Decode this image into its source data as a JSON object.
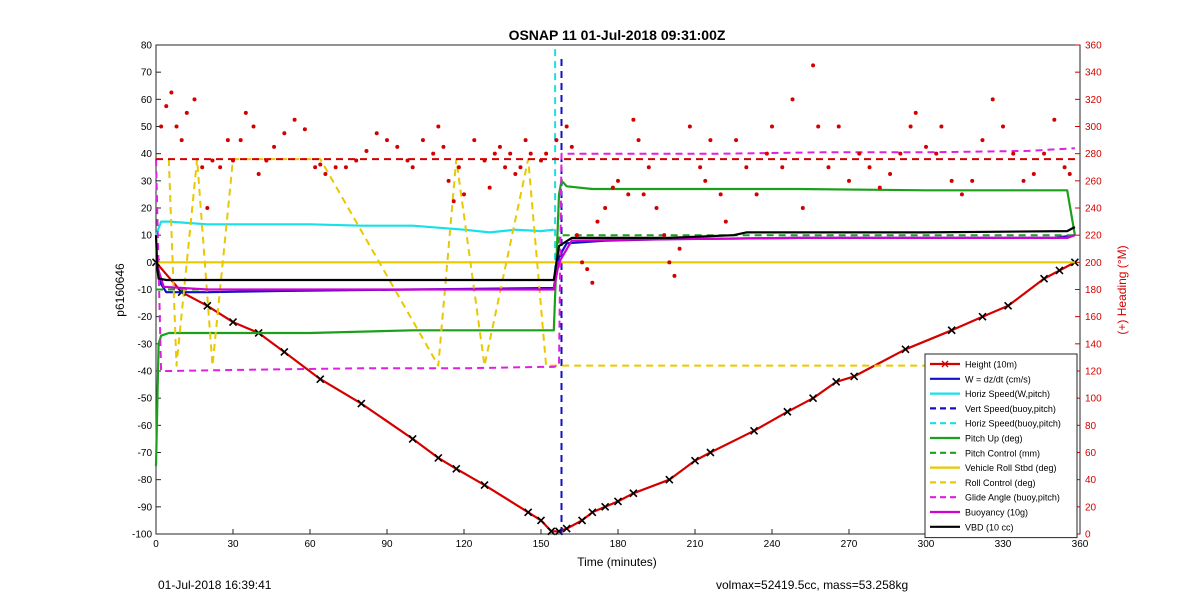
{
  "chart_data": {
    "type": "line",
    "title": "OSNAP 11 01-Jul-2018 09:31:00Z",
    "xlabel": "Time (minutes)",
    "ylabel_left": "p6160646",
    "ylabel_right": "(+) Heading (°M)",
    "xlim": [
      0,
      360
    ],
    "ylim_left": [
      -100,
      80
    ],
    "ylim_right": [
      0,
      360
    ],
    "xticks": [
      0,
      30,
      60,
      90,
      120,
      150,
      180,
      210,
      240,
      270,
      300,
      330,
      360
    ],
    "yticks_left": [
      -100,
      -90,
      -80,
      -70,
      -60,
      -50,
      -40,
      -30,
      -20,
      -10,
      0,
      10,
      20,
      30,
      40,
      50,
      60,
      70,
      80
    ],
    "yticks_right": [
      0,
      20,
      40,
      60,
      80,
      100,
      120,
      140,
      160,
      180,
      200,
      220,
      240,
      260,
      280,
      300,
      320,
      340,
      360
    ],
    "grid": false,
    "legend_position": "bottom-right",
    "series": [
      {
        "name": "Height (10m)",
        "color": "#d40000",
        "style": "solid",
        "marker": "x",
        "x": [
          0,
          10,
          20,
          30,
          40,
          50,
          64,
          80,
          100,
          110,
          117,
          128,
          145,
          150,
          154,
          157,
          160,
          166,
          170,
          175,
          180,
          186,
          200,
          210,
          216,
          233,
          246,
          256,
          265,
          272,
          292,
          310,
          322,
          332,
          346,
          352,
          358
        ],
        "y": [
          0,
          -11,
          -16,
          -22,
          -26,
          -33,
          -43,
          -52,
          -65,
          -72,
          -76,
          -82,
          -92,
          -95,
          -99,
          -99,
          -98,
          -95,
          -92,
          -90,
          -88,
          -85,
          -80,
          -73,
          -70,
          -62,
          -55,
          -50,
          -44,
          -42,
          -32,
          -25,
          -20,
          -16,
          -6,
          -3,
          0
        ]
      },
      {
        "name": "W = dz/dt (cm/s)",
        "color": "#1010c8",
        "style": "solid",
        "x": [
          0,
          2,
          4,
          10,
          20,
          50,
          100,
          150,
          155,
          157,
          160,
          175,
          200,
          250,
          300,
          350,
          358
        ],
        "y": [
          0,
          -8,
          -11,
          -11,
          -11,
          -10.5,
          -10,
          -9.5,
          -9.5,
          2,
          7,
          8,
          8.5,
          9,
          9,
          9,
          10
        ]
      },
      {
        "name": "Horiz Speed(W,pitch)",
        "color": "#18e0e8",
        "style": "solid",
        "x": [
          0,
          2,
          5,
          20,
          40,
          60,
          80,
          100,
          120,
          130,
          140,
          150,
          155
        ],
        "y": [
          10,
          15,
          15,
          14,
          14,
          14,
          13.5,
          13.5,
          12,
          11,
          12,
          11.5,
          12
        ]
      },
      {
        "name": "Vert Speed(buoy,pitch)",
        "color": "#1010c8",
        "style": "dashed",
        "x": [
          158,
          158
        ],
        "y": [
          -100,
          76
        ]
      },
      {
        "name": "Horiz Speed(buoy,pitch)",
        "color": "#18e0e8",
        "style": "dashed",
        "x": [
          155.5,
          155.5
        ],
        "y": [
          -8,
          80
        ]
      },
      {
        "name": "Pitch Up (deg)",
        "color": "#1ca01c",
        "style": "solid",
        "x": [
          0,
          1,
          2,
          5,
          20,
          60,
          100,
          130,
          150,
          155,
          157,
          158,
          160,
          170,
          200,
          250,
          300,
          340,
          355,
          358
        ],
        "y": [
          -75,
          -30,
          -27,
          -26,
          -26,
          -26,
          -25,
          -25,
          -25,
          -25,
          25,
          30,
          28,
          27,
          27,
          27,
          26.5,
          26.5,
          26.5,
          10
        ]
      },
      {
        "name": "Pitch Control (mm)",
        "color": "#1ca01c",
        "style": "dashed",
        "x": [
          0,
          155,
          157,
          180,
          220,
          260,
          300,
          358
        ],
        "y": [
          -10,
          -10,
          10,
          10,
          10,
          10,
          10,
          10
        ]
      },
      {
        "name": "Vehicle Roll Stbd (deg)",
        "color": "#e8c800",
        "style": "solid",
        "x": [
          0,
          20,
          60,
          100,
          155,
          157,
          180,
          220,
          260,
          300,
          358
        ],
        "y": [
          0,
          0,
          0,
          0,
          0,
          0,
          0,
          0,
          0,
          0,
          0
        ]
      },
      {
        "name": "Roll Control (deg)",
        "color": "#e8c800",
        "style": "dashed",
        "x": [
          5,
          8,
          16,
          22,
          30,
          37,
          64,
          110,
          117,
          128,
          145,
          152,
          165,
          175,
          190,
          205,
          215,
          235,
          250,
          270,
          295,
          320,
          335,
          352
        ],
        "y": [
          38,
          -38,
          38,
          -38,
          38,
          38,
          38,
          -38,
          38,
          -38,
          38,
          -38,
          -38,
          -38,
          -38,
          -38,
          -38,
          -38,
          -38,
          -38,
          -38,
          -38,
          -38,
          -38
        ]
      },
      {
        "name": "Glide Angle (buoy,pitch)",
        "color": "#e020e0",
        "style": "dashed",
        "x": [
          0,
          2,
          5,
          40,
          80,
          120,
          150,
          155,
          157,
          158,
          180,
          220,
          260,
          300,
          340,
          358
        ],
        "y": [
          38,
          -40,
          -40,
          -39.5,
          -39,
          -39,
          -38.5,
          -38.5,
          -38,
          40,
          40,
          40,
          40.5,
          40.5,
          41,
          42
        ]
      },
      {
        "name": "Buoyancy (10g)",
        "color": "#d000d0",
        "style": "solid",
        "x": [
          0,
          3,
          20,
          60,
          100,
          155,
          157,
          162,
          200,
          250,
          300,
          355,
          358
        ],
        "y": [
          0,
          -9,
          -10,
          -10,
          -10,
          -10,
          0,
          8,
          8.5,
          9,
          9,
          9,
          10
        ]
      },
      {
        "name": "VBD (10 cc)",
        "color": "#000000",
        "style": "solid",
        "x": [
          0,
          0.5,
          1,
          4,
          20,
          60,
          100,
          155,
          157,
          162,
          200,
          225,
          230,
          260,
          300,
          355,
          358
        ],
        "y": [
          10,
          -2,
          -6,
          -6.5,
          -6.5,
          -6.5,
          -6.5,
          -6.5,
          6,
          9,
          9,
          10,
          11,
          11,
          11,
          11.5,
          13
        ]
      },
      {
        "name": "Heading",
        "color": "#d40000",
        "style": "points",
        "axis": "right",
        "x": [
          2,
          4,
          6,
          8,
          10,
          12,
          15,
          18,
          20,
          22,
          25,
          28,
          30,
          33,
          35,
          38,
          40,
          43,
          46,
          50,
          54,
          58,
          62,
          64,
          66,
          70,
          74,
          78,
          82,
          86,
          90,
          94,
          98,
          100,
          104,
          108,
          110,
          112,
          114,
          116,
          118,
          120,
          124,
          128,
          130,
          132,
          134,
          136,
          138,
          140,
          142,
          144,
          146,
          150,
          152,
          156,
          160,
          162,
          164,
          166,
          168,
          170,
          172,
          175,
          178,
          180,
          184,
          186,
          188,
          190,
          192,
          195,
          198,
          200,
          202,
          204,
          208,
          212,
          214,
          216,
          220,
          222,
          226,
          230,
          234,
          238,
          240,
          244,
          248,
          252,
          256,
          258,
          262,
          266,
          270,
          274,
          278,
          282,
          286,
          290,
          294,
          296,
          300,
          304,
          306,
          310,
          314,
          318,
          322,
          326,
          330,
          334,
          338,
          342,
          346,
          350,
          354,
          356
        ],
        "y": [
          300,
          315,
          325,
          300,
          290,
          310,
          320,
          270,
          240,
          275,
          270,
          290,
          275,
          290,
          310,
          300,
          265,
          275,
          285,
          295,
          305,
          298,
          270,
          272,
          265,
          270,
          270,
          275,
          282,
          295,
          290,
          285,
          275,
          270,
          290,
          280,
          300,
          285,
          260,
          245,
          270,
          250,
          290,
          275,
          255,
          280,
          285,
          270,
          280,
          265,
          270,
          290,
          280,
          275,
          280,
          290,
          300,
          285,
          220,
          200,
          195,
          185,
          230,
          240,
          255,
          260,
          250,
          305,
          290,
          250,
          270,
          240,
          220,
          200,
          190,
          210,
          300,
          270,
          260,
          290,
          250,
          230,
          290,
          270,
          250,
          280,
          300,
          270,
          320,
          240,
          345,
          300,
          270,
          300,
          260,
          280,
          270,
          255,
          265,
          280,
          300,
          310,
          285,
          280,
          300,
          260,
          250,
          260,
          290,
          320,
          300,
          280,
          260,
          265,
          280,
          305,
          270,
          265
        ]
      },
      {
        "name": "Heading target",
        "color": "#d40000",
        "style": "dashed",
        "axis": "right",
        "x": [
          0,
          360
        ],
        "y": [
          276,
          276
        ]
      }
    ],
    "legend": [
      "Height (10m)",
      "W = dz/dt (cm/s)",
      "Horiz Speed(W,pitch)",
      "Vert Speed(buoy,pitch)",
      "Horiz Speed(buoy,pitch)",
      "Pitch Up (deg)",
      "Pitch Control (mm)",
      "Vehicle Roll Stbd (deg)",
      "Roll Control (deg)",
      "Glide Angle (buoy,pitch)",
      "Buoyancy (10g)",
      "VBD (10 cc)"
    ]
  },
  "footer": {
    "left_text": "01-Jul-2018 16:39:41",
    "right_text": "volmax=52419.5cc, mass=53.258kg"
  }
}
